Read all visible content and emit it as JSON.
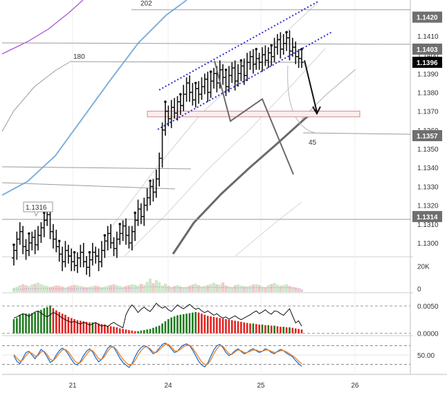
{
  "chart_data": [
    {
      "type": "candlestick",
      "title": "",
      "x_tick_labels": [
        "21",
        "24",
        "25",
        "26"
      ],
      "y_tick_labels": [
        "1.1300",
        "1.1310",
        "1.1320",
        "1.1330",
        "1.1340",
        "1.1350",
        "1.1360",
        "1.1370",
        "1.1380",
        "1.1390",
        "1.1400",
        "1.1410"
      ],
      "ylim": [
        1.1293,
        1.1428
      ],
      "price_markers": [
        {
          "label": "1.1420",
          "value": 1.142,
          "style": "gray"
        },
        {
          "label": "1.1403",
          "value": 1.1403,
          "style": "gray"
        },
        {
          "label": "1.1396",
          "value": 1.1396,
          "style": "black"
        },
        {
          "label": "1.1357",
          "value": 1.1357,
          "style": "gray"
        },
        {
          "label": "1.1314",
          "value": 1.1314,
          "style": "gray"
        }
      ],
      "annotations": [
        {
          "text": "202",
          "type": "level-label"
        },
        {
          "text": "180",
          "type": "level-label"
        },
        {
          "text": "45",
          "type": "level-label"
        },
        {
          "text": "1.1316",
          "type": "callout"
        }
      ],
      "support_zone": [
        1.1367,
        1.137
      ],
      "forecast": {
        "from": 1.1397,
        "to": 1.1368
      },
      "close": [
        1.1296,
        1.1302,
        1.1306,
        1.1298,
        1.1296,
        1.13,
        1.1303,
        1.1299,
        1.1304,
        1.1308,
        1.1312,
        1.1315,
        1.1306,
        1.1302,
        1.1298,
        1.1294,
        1.129,
        1.1296,
        1.1293,
        1.129,
        1.1288,
        1.1292,
        1.1295,
        1.129,
        1.1287,
        1.1291,
        1.1295,
        1.1293,
        1.129,
        1.1296,
        1.1301,
        1.1305,
        1.13,
        1.1297,
        1.1302,
        1.1305,
        1.1309,
        1.1304,
        1.13,
        1.1306,
        1.1312,
        1.1318,
        1.1314,
        1.132,
        1.1324,
        1.133,
        1.1327,
        1.1334,
        1.1345,
        1.136,
        1.137,
        1.1366,
        1.1372,
        1.1369,
        1.1375,
        1.1373,
        1.1379,
        1.1385,
        1.138,
        1.1376,
        1.1382,
        1.1379,
        1.1383,
        1.1387,
        1.138,
        1.1386,
        1.139,
        1.1385,
        1.1392,
        1.1388,
        1.1383,
        1.1389,
        1.1393,
        1.1386,
        1.139,
        1.1394,
        1.1389,
        1.1396,
        1.1399,
        1.1395,
        1.1398,
        1.1396,
        1.14,
        1.1397,
        1.1401,
        1.1399,
        1.1404,
        1.1408,
        1.1403,
        1.1406,
        1.1409,
        1.1402,
        1.1404,
        1.1399,
        1.1398,
        1.1396
      ]
    },
    {
      "type": "bar",
      "panel": "volume",
      "y_tick_labels": [
        "20K",
        "0"
      ],
      "ylim": [
        0,
        26000
      ],
      "values": [
        3200,
        4100,
        5300,
        6000,
        5200,
        4500,
        5800,
        6400,
        7200,
        6100,
        5000,
        4600,
        3900,
        4400,
        5100,
        4800,
        4200,
        3600,
        4300,
        4900,
        5500,
        5100,
        4700,
        4000,
        3700,
        4100,
        4500,
        4900,
        4400,
        3800,
        4200,
        4800,
        5400,
        5900,
        5200,
        4600,
        4000,
        4700,
        5300,
        6000,
        5600,
        5000,
        6300,
        5600,
        7800,
        10200,
        6800,
        9300,
        7600,
        5100,
        6400,
        4800,
        3900,
        4600,
        5400,
        4300,
        3700,
        4100,
        4900,
        5700,
        6300,
        5200,
        4400,
        4700,
        5300,
        6200,
        7100,
        5900,
        5600,
        7400,
        5100,
        4300,
        4000,
        5200,
        5800,
        5000,
        4500,
        4300,
        4900,
        5700,
        6000,
        5300,
        4200,
        3800,
        5400,
        6200,
        7000,
        5600,
        4800,
        5300,
        6000,
        4700,
        3900,
        3400,
        2600,
        2000
      ],
      "average": [
        2100,
        2100,
        2200,
        2300,
        2400,
        2500,
        2600,
        2500,
        2500,
        2600,
        2800,
        2700,
        2600,
        2600,
        2500,
        2400,
        2500,
        2600,
        2500,
        2400,
        2400,
        2500,
        2600,
        2700,
        2600,
        2500,
        2500,
        2600,
        2700,
        2800,
        2700,
        2800,
        2900,
        3000,
        2900,
        2800,
        2900,
        3000,
        3100,
        3000,
        3000,
        3200,
        3300,
        3600,
        3800,
        4100,
        4000,
        4100,
        3900,
        3700,
        3500,
        3300,
        3200,
        3200,
        3400,
        3300,
        3200,
        3100,
        3200,
        3400,
        3500,
        3400,
        3300,
        3300,
        3400,
        3500,
        3600,
        3500,
        3400,
        3500,
        3400,
        3200,
        3100,
        3200,
        3300,
        3300,
        3200,
        3100,
        3200,
        3300,
        3400,
        3300,
        3200,
        3200,
        3300,
        3400,
        3500,
        3400,
        3300,
        3300,
        3400,
        3300,
        3200,
        3000,
        2800,
        2600
      ]
    },
    {
      "type": "bar",
      "panel": "histogram",
      "y_tick_labels": [
        "0.0050",
        "0.0000"
      ],
      "ylim": [
        -0.0003,
        0.0073
      ],
      "values": [
        0.0026,
        0.0028,
        0.0034,
        0.0035,
        0.0036,
        0.0036,
        0.0037,
        0.0038,
        0.0041,
        0.0043,
        0.0046,
        0.0048,
        0.0051,
        0.0046,
        0.0042,
        0.0039,
        0.0036,
        0.0034,
        0.003,
        0.0028,
        0.0026,
        0.0024,
        0.0023,
        0.0022,
        0.0021,
        0.002,
        0.002,
        0.0019,
        0.0018,
        0.0017,
        0.0016,
        0.0014,
        0.0013,
        0.0012,
        0.0011,
        0.0009,
        0.0008,
        0.0007,
        0.0006,
        0.0005,
        0.0004,
        0.0004,
        0.0005,
        0.0006,
        0.0007,
        0.0008,
        0.001,
        0.0012,
        0.0014,
        0.0018,
        0.0022,
        0.0026,
        0.0029,
        0.0031,
        0.0033,
        0.0034,
        0.0035,
        0.0036,
        0.0037,
        0.0038,
        0.0039,
        0.0038,
        0.0036,
        0.0034,
        0.0032,
        0.0031,
        0.003,
        0.0029,
        0.0028,
        0.0027,
        0.0026,
        0.0025,
        0.0024,
        0.0023,
        0.0022,
        0.0021,
        0.002,
        0.0019,
        0.0018,
        0.0018,
        0.0017,
        0.0016,
        0.0016,
        0.0015,
        0.0015,
        0.0014,
        0.0014,
        0.0013,
        0.0012,
        0.0012,
        0.0011,
        0.0011,
        0.001,
        0.0009,
        0.0008,
        0.0007
      ],
      "up_color": "#1e7b1e",
      "down_color": "#e0231f",
      "signal": [
        0.0028,
        0.003,
        0.0033,
        0.0036,
        0.0034,
        0.0031,
        0.0035,
        0.0039,
        0.0041,
        0.0037,
        0.0033,
        0.003,
        0.0034,
        0.0038,
        0.0036,
        0.0032,
        0.0028,
        0.0025,
        0.0022,
        0.002,
        0.0022,
        0.0019,
        0.0017,
        0.002,
        0.0018,
        0.0015,
        0.0017,
        0.002,
        0.0016,
        0.0013,
        0.0015,
        0.0012,
        0.0017,
        0.002,
        0.0016,
        0.0013,
        0.001,
        0.0034,
        0.0045,
        0.0052,
        0.0046,
        0.0038,
        0.0044,
        0.0048,
        0.0043,
        0.004,
        0.0047,
        0.0055,
        0.005,
        0.0046,
        0.0049,
        0.0043,
        0.004,
        0.0046,
        0.0052,
        0.0048,
        0.0045,
        0.0049,
        0.0053,
        0.0048,
        0.0044,
        0.0046,
        0.0041,
        0.0038,
        0.0041,
        0.0037,
        0.0033,
        0.0036,
        0.0031,
        0.0028,
        0.003,
        0.0026,
        0.0029,
        0.0032,
        0.0028,
        0.0025,
        0.0028,
        0.0031,
        0.0034,
        0.0038,
        0.0041,
        0.0036,
        0.0039,
        0.0043,
        0.0038,
        0.0035,
        0.0041,
        0.004,
        0.0036,
        0.0033,
        0.0039,
        0.0045,
        0.0032,
        0.0019,
        0.0023,
        0.0013
      ]
    },
    {
      "type": "line",
      "panel": "oscillator",
      "y_tick_labels": [
        "50.00"
      ],
      "ylim": [
        -10,
        110
      ],
      "reference_lines": [
        20,
        50,
        80
      ],
      "series": [
        {
          "color": "#1f6fd1",
          "values": [
            48,
            30,
            22,
            40,
            58,
            62,
            50,
            38,
            52,
            68,
            60,
            44,
            26,
            32,
            50,
            64,
            72,
            66,
            52,
            36,
            22,
            18,
            30,
            48,
            62,
            70,
            60,
            42,
            28,
            36,
            54,
            72,
            80,
            74,
            58,
            40,
            26,
            18,
            10,
            22,
            44,
            62,
            74,
            80,
            76,
            66,
            54,
            60,
            72,
            84,
            88,
            82,
            70,
            58,
            62,
            74,
            82,
            86,
            80,
            66,
            48,
            30,
            18,
            12,
            24,
            46,
            66,
            80,
            84,
            74,
            58,
            48,
            54,
            64,
            70,
            62,
            54,
            58,
            66,
            70,
            64,
            58,
            62,
            70,
            66,
            58,
            54,
            62,
            68,
            64,
            56,
            50,
            44,
            32,
            22,
            14
          ]
        },
        {
          "color": "#f07e1e",
          "values": [
            52,
            40,
            30,
            34,
            48,
            58,
            56,
            46,
            48,
            60,
            62,
            52,
            36,
            32,
            42,
            56,
            66,
            68,
            60,
            46,
            32,
            24,
            26,
            38,
            52,
            64,
            64,
            52,
            38,
            36,
            46,
            62,
            74,
            76,
            66,
            50,
            36,
            26,
            18,
            20,
            32,
            50,
            64,
            74,
            76,
            70,
            60,
            58,
            66,
            76,
            84,
            84,
            76,
            64,
            62,
            68,
            76,
            82,
            82,
            72,
            58,
            42,
            28,
            20,
            20,
            34,
            54,
            70,
            80,
            78,
            66,
            54,
            52,
            60,
            66,
            64,
            58,
            58,
            62,
            66,
            66,
            62,
            62,
            66,
            66,
            62,
            58,
            60,
            64,
            64,
            60,
            54,
            48,
            40,
            30,
            22
          ]
        }
      ]
    }
  ],
  "colors": {
    "up_histogram": "#1e7b1e",
    "down_histogram": "#e0231f",
    "channel": "#2a2ad4",
    "ma_blue": "#7fb0dd",
    "ma_purple": "#a857d6",
    "volume_up": "#cce8c8",
    "volume_down": "#f1c8c8"
  }
}
